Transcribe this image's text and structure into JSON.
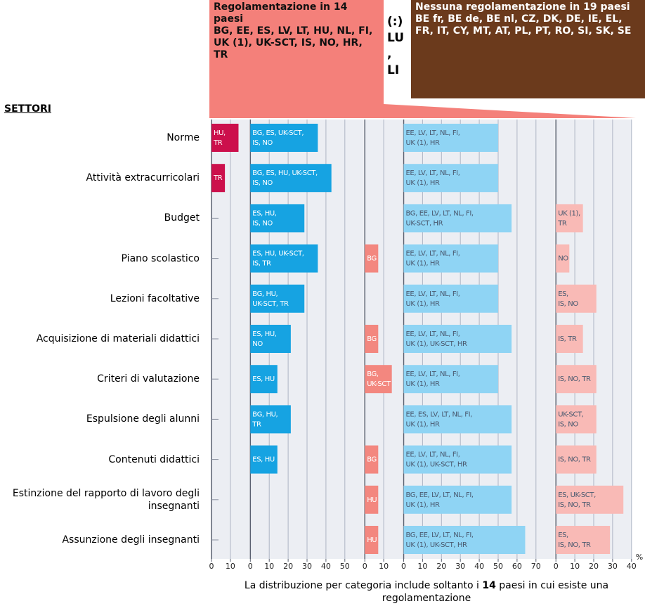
{
  "chart_data": {
    "type": "bar",
    "header": {
      "regulated": {
        "title": "Regolamentazione in 14 paesi",
        "countries": [
          "BG, EE, ES, LV, LT, HU, NL, FI,",
          "UK (1), UK-SCT, IS, NO, HR, TR"
        ]
      },
      "no_data": [
        "(:)",
        "LU",
        ",",
        "LI"
      ],
      "not_regulated": {
        "title": "Nessuna regolamentazione in 19 paesi",
        "countries": [
          "BE fr, BE de, BE nl, CZ, DK, DE, IE, EL,",
          "FR, IT, CY, MT, AT, PL, PT, RO, SI, SK, SE"
        ]
      }
    },
    "categories_title": "SETTORI",
    "categories": [
      "Norme",
      "Attività extracurricolari",
      "Budget",
      "Piano scolastico",
      "Lezioni facoltative",
      "Acquisizione di materiali didattici",
      "Criteri di valutazione",
      "Espulsione degli alunni",
      "Contenuti didattici",
      "Estinzione del rapporto di lavoro degli insegnanti",
      "Assunzione degli insegnanti"
    ],
    "x_unit": "%",
    "series": [
      {
        "color": "#cc104c",
        "xlim": [
          0,
          20
        ],
        "xticks": [
          0,
          10
        ],
        "values": [
          14.3,
          7.1,
          null,
          null,
          null,
          null,
          null,
          null,
          null,
          null,
          null
        ],
        "value_labels": [
          [
            "HU,",
            "TR"
          ],
          [
            "TR"
          ],
          null,
          null,
          null,
          null,
          null,
          null,
          null,
          null,
          null
        ]
      },
      {
        "color": "#16a3e2",
        "xlim": [
          0,
          60
        ],
        "xticks": [
          0,
          10,
          20,
          30,
          40,
          50
        ],
        "values": [
          35.7,
          42.9,
          28.6,
          35.7,
          28.6,
          21.4,
          14.3,
          21.4,
          14.3,
          null,
          null
        ],
        "value_labels": [
          [
            "BG, ES, UK-SCT,",
            "IS, NO"
          ],
          [
            "BG, ES, HU, UK-SCT,",
            "IS, NO"
          ],
          [
            "ES, HU,",
            "IS, NO"
          ],
          [
            "ES, HU, UK-SCT,",
            "IS, TR"
          ],
          [
            "BG, HU,",
            "UK-SCT, TR"
          ],
          [
            "ES, HU,",
            "NO"
          ],
          [
            "ES, HU"
          ],
          [
            "BG, HU,",
            "TR"
          ],
          [
            "ES, HU"
          ],
          null,
          null
        ]
      },
      {
        "color": "#f3877f",
        "xlim": [
          0,
          20
        ],
        "xticks": [
          0,
          10
        ],
        "values": [
          null,
          null,
          null,
          7.1,
          null,
          7.1,
          14.3,
          null,
          7.1,
          7.1,
          7.1
        ],
        "value_labels": [
          null,
          null,
          null,
          [
            "BG"
          ],
          null,
          [
            "BG"
          ],
          [
            "BG,",
            "UK-SCT"
          ],
          null,
          [
            "BG"
          ],
          [
            "HU"
          ],
          [
            "HU"
          ]
        ]
      },
      {
        "color": "#8fd4f4",
        "xlim": [
          0,
          80
        ],
        "xticks": [
          0,
          10,
          20,
          30,
          40,
          50,
          60,
          70
        ],
        "values": [
          50,
          50,
          57.1,
          50,
          50,
          57.1,
          50,
          57.1,
          57.1,
          57.1,
          64.3
        ],
        "value_labels": [
          [
            "EE, LV, LT, NL, FI,",
            "UK (1), HR"
          ],
          [
            "EE, LV, LT, NL, FI,",
            "UK (1), HR"
          ],
          [
            "BG, EE, LV, LT, NL, FI,",
            "UK-SCT, HR"
          ],
          [
            "EE, LV, LT, NL, FI,",
            "UK (1), HR"
          ],
          [
            "EE, LV, LT, NL, FI,",
            "UK (1), HR"
          ],
          [
            "EE, LV, LT, NL, FI,",
            "UK (1), UK-SCT, HR"
          ],
          [
            "EE, LV, LT, NL, FI,",
            "UK (1), HR"
          ],
          [
            "EE, ES, LV, LT, NL, FI,",
            "UK (1), HR"
          ],
          [
            "EE, LV, LT, NL, FI,",
            "UK (1), UK-SCT, HR"
          ],
          [
            "BG, EE, LV, LT, NL, FI,",
            "UK (1), HR"
          ],
          [
            "BG, EE, LV, LT, NL, FI,",
            "UK (1), UK-SCT, HR"
          ]
        ]
      },
      {
        "color": "#f9bab6",
        "xlim": [
          0,
          40
        ],
        "xticks": [
          0,
          10,
          20,
          30,
          40
        ],
        "values": [
          null,
          null,
          14.3,
          7.1,
          21.4,
          14.3,
          21.4,
          21.4,
          21.4,
          35.7,
          28.6
        ],
        "value_labels": [
          null,
          null,
          [
            "UK (1),",
            "TR"
          ],
          [
            "NO"
          ],
          [
            "ES,",
            "IS, NO"
          ],
          [
            "IS, TR"
          ],
          [
            "IS, NO, TR"
          ],
          [
            "UK-SCT,",
            "IS, NO"
          ],
          [
            "IS, NO, TR"
          ],
          [
            "ES, UK-SCT,",
            "IS, NO, TR"
          ],
          [
            "ES,",
            "IS, NO, TR"
          ]
        ]
      }
    ],
    "footnote": [
      "La distribuzione per categoria include soltanto i ",
      "14",
      " paesi in cui esiste una regolamentazione"
    ]
  }
}
